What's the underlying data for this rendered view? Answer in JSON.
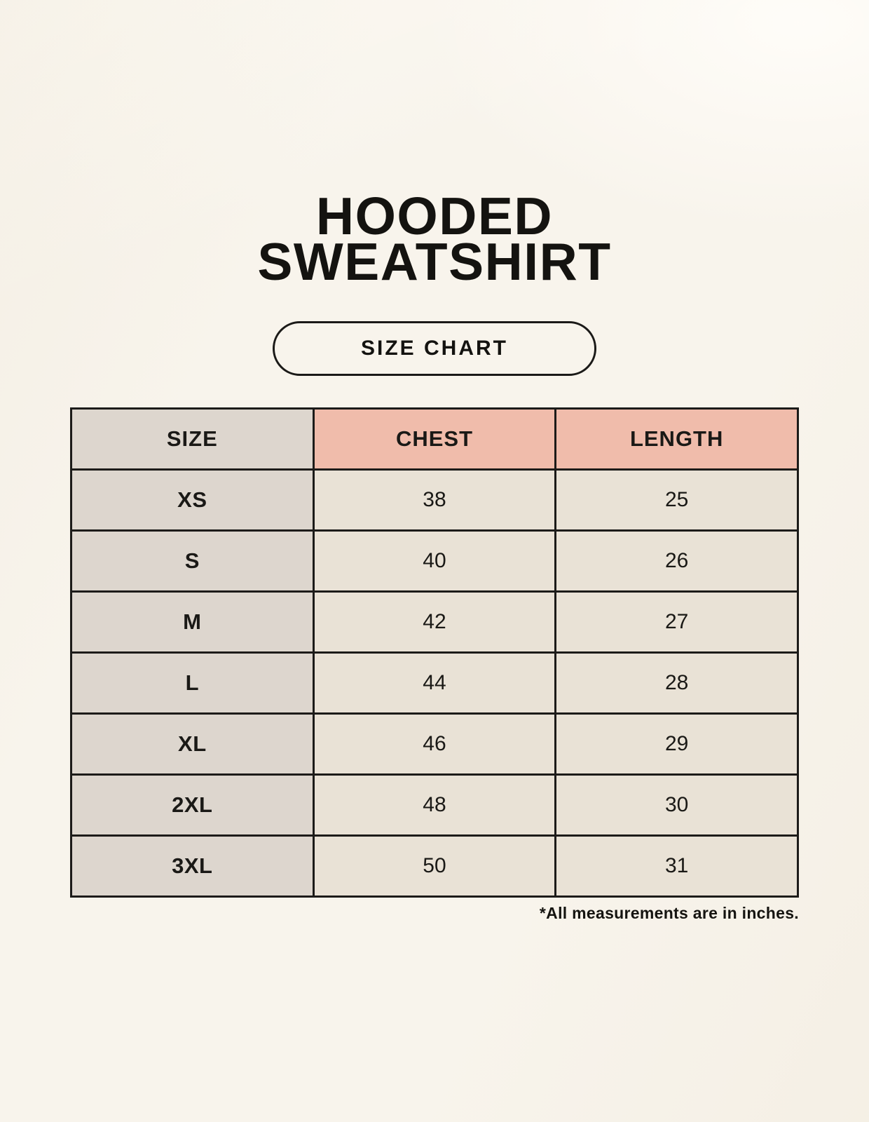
{
  "page": {
    "title_line1": "HOODED",
    "title_line2": "SWEATSHIRT",
    "size_chart_button_label": "SIZE CHART",
    "footnote": "*All measurements are in inches."
  },
  "colors": {
    "page_bg": "#f8f4ec",
    "header_accent": "#f0bcab",
    "size_column_bg": "#ddd6ce",
    "data_cell_bg": "#e9e2d6",
    "table_border": "#1c1b19",
    "text": "#1a1916"
  },
  "chart_data": {
    "type": "table",
    "title": "HOODED SWEATSHIRT — SIZE CHART",
    "columns": [
      "SIZE",
      "CHEST",
      "LENGTH"
    ],
    "rows": [
      {
        "size": "XS",
        "chest": 38,
        "length": 25
      },
      {
        "size": "S",
        "chest": 40,
        "length": 26
      },
      {
        "size": "M",
        "chest": 42,
        "length": 27
      },
      {
        "size": "L",
        "chest": 44,
        "length": 28
      },
      {
        "size": "XL",
        "chest": 46,
        "length": 29
      },
      {
        "size": "2XL",
        "chest": 48,
        "length": 30
      },
      {
        "size": "3XL",
        "chest": 50,
        "length": 31
      }
    ],
    "units_note": "*All measurements are in inches."
  }
}
